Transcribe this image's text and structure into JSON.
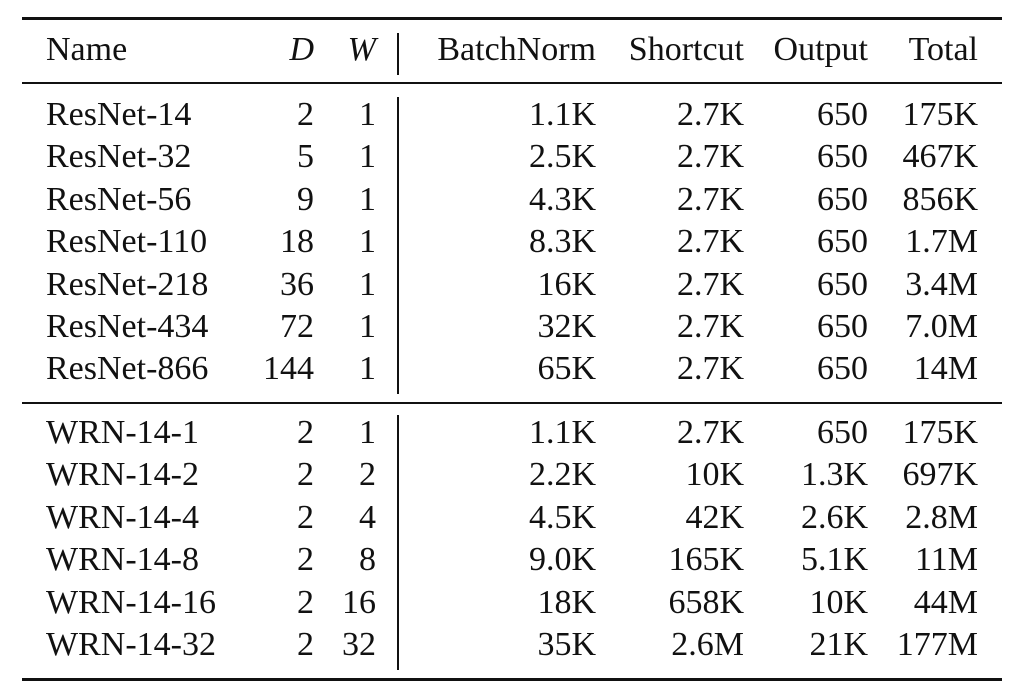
{
  "table": {
    "headers": {
      "name": "Name",
      "d": "D",
      "w": "W",
      "batchnorm": "BatchNorm",
      "shortcut": "Shortcut",
      "output": "Output",
      "total": "Total"
    },
    "groups": [
      {
        "rows": [
          {
            "name": "ResNet-14",
            "d": "2",
            "w": "1",
            "batchnorm": "1.1K",
            "shortcut": "2.7K",
            "output": "650",
            "total": "175K"
          },
          {
            "name": "ResNet-32",
            "d": "5",
            "w": "1",
            "batchnorm": "2.5K",
            "shortcut": "2.7K",
            "output": "650",
            "total": "467K"
          },
          {
            "name": "ResNet-56",
            "d": "9",
            "w": "1",
            "batchnorm": "4.3K",
            "shortcut": "2.7K",
            "output": "650",
            "total": "856K"
          },
          {
            "name": "ResNet-110",
            "d": "18",
            "w": "1",
            "batchnorm": "8.3K",
            "shortcut": "2.7K",
            "output": "650",
            "total": "1.7M"
          },
          {
            "name": "ResNet-218",
            "d": "36",
            "w": "1",
            "batchnorm": "16K",
            "shortcut": "2.7K",
            "output": "650",
            "total": "3.4M"
          },
          {
            "name": "ResNet-434",
            "d": "72",
            "w": "1",
            "batchnorm": "32K",
            "shortcut": "2.7K",
            "output": "650",
            "total": "7.0M"
          },
          {
            "name": "ResNet-866",
            "d": "144",
            "w": "1",
            "batchnorm": "65K",
            "shortcut": "2.7K",
            "output": "650",
            "total": "14M"
          }
        ]
      },
      {
        "rows": [
          {
            "name": "WRN-14-1",
            "d": "2",
            "w": "1",
            "batchnorm": "1.1K",
            "shortcut": "2.7K",
            "output": "650",
            "total": "175K"
          },
          {
            "name": "WRN-14-2",
            "d": "2",
            "w": "2",
            "batchnorm": "2.2K",
            "shortcut": "10K",
            "output": "1.3K",
            "total": "697K"
          },
          {
            "name": "WRN-14-4",
            "d": "2",
            "w": "4",
            "batchnorm": "4.5K",
            "shortcut": "42K",
            "output": "2.6K",
            "total": "2.8M"
          },
          {
            "name": "WRN-14-8",
            "d": "2",
            "w": "8",
            "batchnorm": "9.0K",
            "shortcut": "165K",
            "output": "5.1K",
            "total": "11M"
          },
          {
            "name": "WRN-14-16",
            "d": "2",
            "w": "16",
            "batchnorm": "18K",
            "shortcut": "658K",
            "output": "10K",
            "total": "44M"
          },
          {
            "name": "WRN-14-32",
            "d": "2",
            "w": "32",
            "batchnorm": "35K",
            "shortcut": "2.6M",
            "output": "21K",
            "total": "177M"
          }
        ]
      }
    ]
  }
}
